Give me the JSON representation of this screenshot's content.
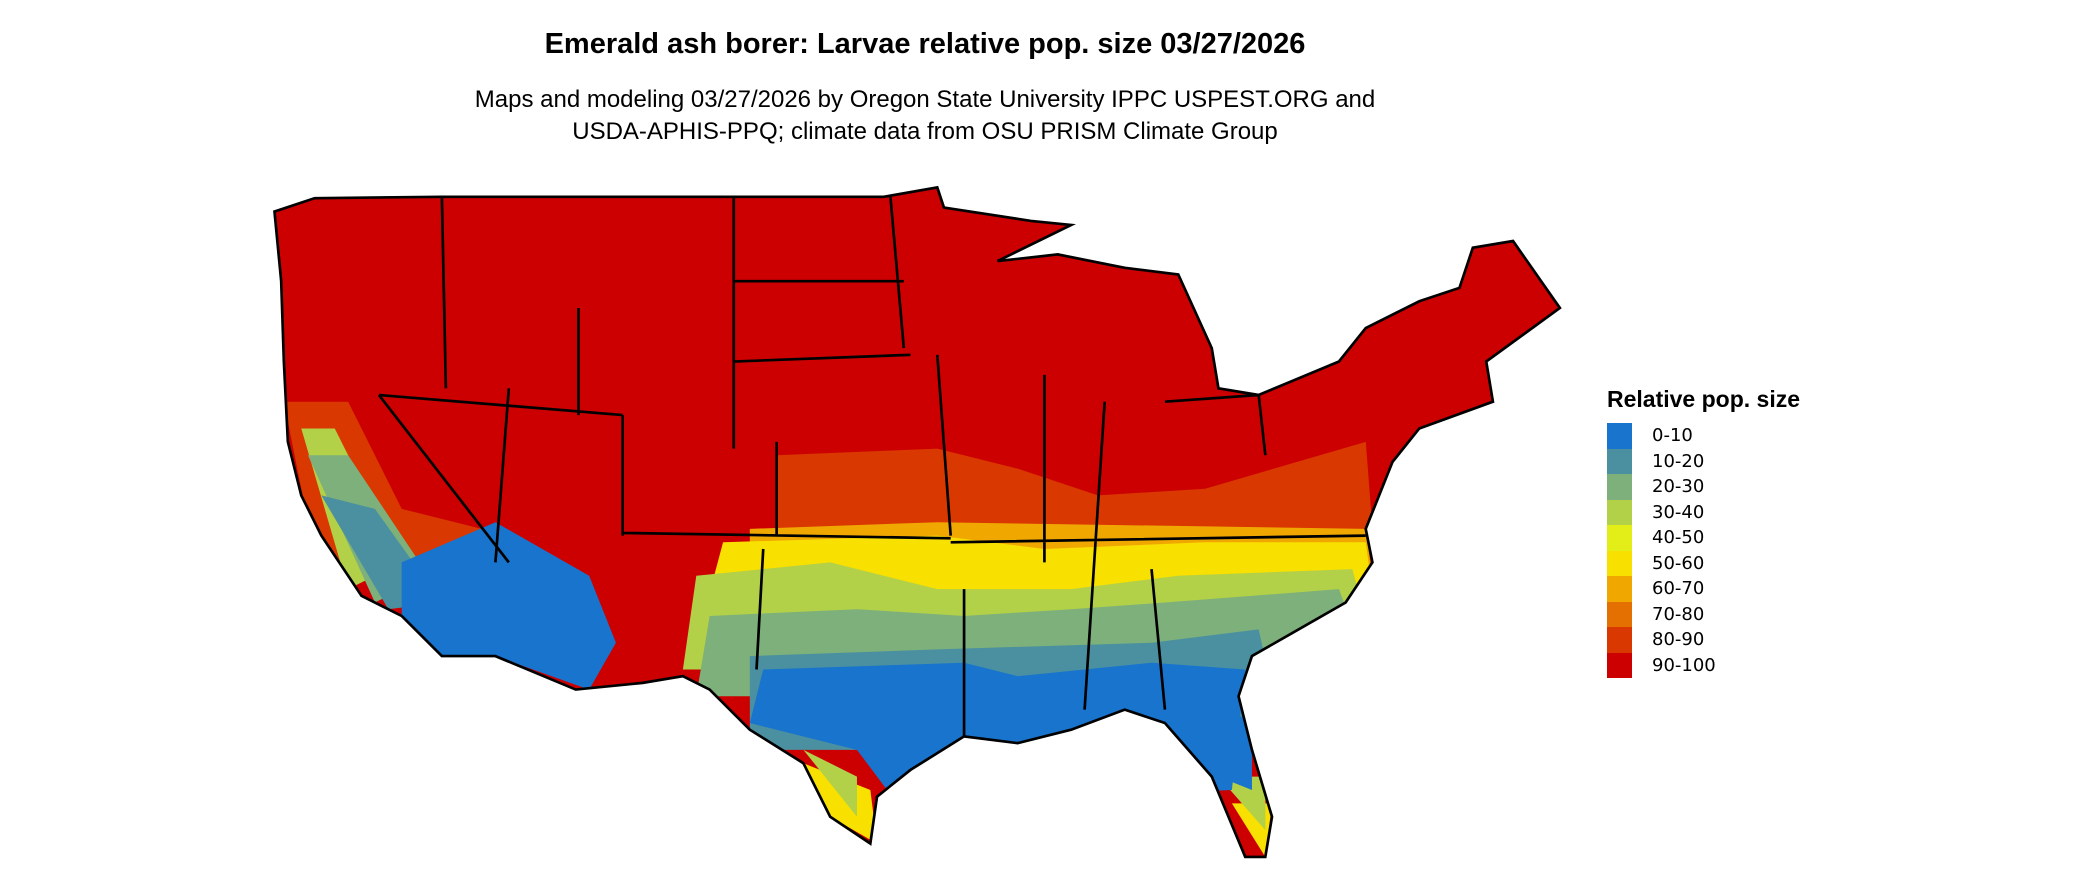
{
  "title": "Emerald ash borer: Larvae relative pop. size 03/27/2026",
  "subtitle_line1": "Maps and modeling 03/27/2026 by Oregon State University IPPC USPEST.ORG and",
  "subtitle_line2": "USDA-APHIS-PPQ; climate data from OSU PRISM Climate Group",
  "legend": {
    "title": "Relative pop. size",
    "items": [
      {
        "label": "0-10",
        "color": "#1874CD"
      },
      {
        "label": "10-20",
        "color": "#4A90A0"
      },
      {
        "label": "20-30",
        "color": "#7DB07A"
      },
      {
        "label": "30-40",
        "color": "#B2D048"
      },
      {
        "label": "40-50",
        "color": "#E3EE18"
      },
      {
        "label": "50-60",
        "color": "#F8E000"
      },
      {
        "label": "60-70",
        "color": "#F0A800"
      },
      {
        "label": "70-80",
        "color": "#E37000"
      },
      {
        "label": "80-90",
        "color": "#D93800"
      },
      {
        "label": "90-100",
        "color": "#CC0000"
      }
    ]
  }
}
